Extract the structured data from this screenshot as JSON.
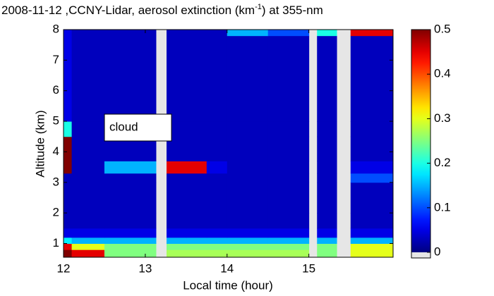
{
  "chart_data": {
    "type": "heatmap",
    "title": "2008-11-12 ,CCNY-Lidar, aerosol extinction (km",
    "title_superscript": "-1",
    "title_end": ") at 355-nm",
    "x_label": "Local time (hour)",
    "y_label": "Altitude (km)",
    "annotation": "cloud",
    "colormap": "jet",
    "missing_color": "#e6e6e6",
    "xlim": [
      12,
      16.03
    ],
    "ylim": [
      0.55,
      8
    ],
    "xticks": [
      12,
      13,
      14,
      15
    ],
    "yticks": [
      1,
      2,
      3,
      4,
      5,
      6,
      7,
      8
    ],
    "clim": [
      0,
      0.5
    ],
    "cticks": [
      0,
      0.1,
      0.2,
      0.3,
      0.4,
      0.5
    ],
    "x_edges": [
      12,
      12.1,
      12.5,
      13.13,
      13.26,
      13.5,
      13.75,
      14,
      14.5,
      15,
      15.1,
      15.34,
      15.51,
      16.03
    ],
    "y_edges": [
      0.55,
      0.8,
      1.0,
      1.2,
      1.5,
      2,
      3,
      3.3,
      3.7,
      4.5,
      5,
      7.8,
      8
    ],
    "values": [
      [
        0.5,
        0.45,
        0.25,
        null,
        0.27,
        0.27,
        0.27,
        0.27,
        0.27,
        null,
        0.25,
        null,
        0.3
      ],
      [
        0.45,
        0.3,
        0.25,
        null,
        0.25,
        0.25,
        0.25,
        0.25,
        0.25,
        null,
        0.25,
        null,
        0.3
      ],
      [
        0.18,
        0.15,
        0.15,
        null,
        0.15,
        0.15,
        0.15,
        0.15,
        0.15,
        null,
        0.15,
        null,
        0.15
      ],
      [
        0.05,
        0.05,
        0.05,
        null,
        0.05,
        0.05,
        0.05,
        0.05,
        0.05,
        null,
        0.05,
        null,
        0.05
      ],
      [
        0.03,
        0.03,
        0.03,
        null,
        0.03,
        0.03,
        0.03,
        0.03,
        0.03,
        null,
        0.03,
        null,
        0.03
      ],
      [
        0.03,
        0.03,
        0.03,
        null,
        0.03,
        0.03,
        0.03,
        0.03,
        0.03,
        null,
        0.03,
        null,
        0.03
      ],
      [
        0.03,
        0.03,
        0.03,
        null,
        0.03,
        0.03,
        0.03,
        0.03,
        0.03,
        null,
        0.03,
        null,
        0.1
      ],
      [
        0.5,
        0.03,
        0.15,
        null,
        0.45,
        0.45,
        0.05,
        0.03,
        0.03,
        null,
        0.03,
        null,
        0.05
      ],
      [
        0.5,
        0.03,
        0.03,
        null,
        0.03,
        0.03,
        0.03,
        0.03,
        0.03,
        null,
        0.03,
        null,
        0.03
      ],
      [
        0.2,
        0.03,
        0.03,
        null,
        0.03,
        0.03,
        0.03,
        0.03,
        0.03,
        null,
        0.03,
        null,
        0.03
      ],
      [
        0.05,
        0.03,
        0.03,
        null,
        0.03,
        0.03,
        0.03,
        0.03,
        0.03,
        null,
        0.03,
        null,
        0.03
      ],
      [
        0.05,
        0.03,
        0.03,
        null,
        0.03,
        0.03,
        0.03,
        0.15,
        0.1,
        null,
        0.2,
        null,
        0.45
      ]
    ]
  }
}
